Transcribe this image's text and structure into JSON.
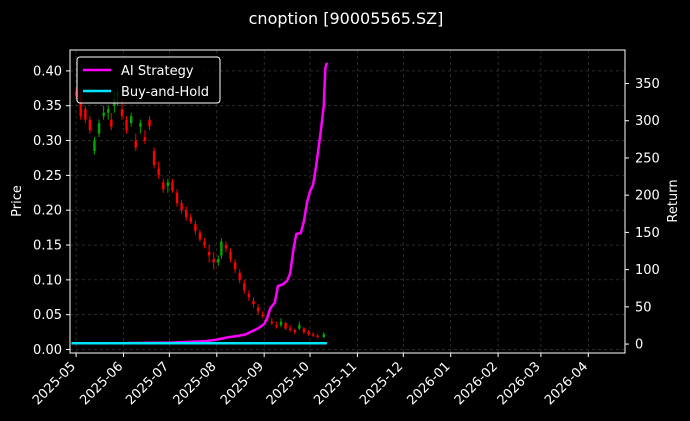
{
  "chart_data": {
    "type": "line",
    "title": "cnoption [90005565.SZ]",
    "ylabel_left": "Price",
    "ylabel_right": "Return",
    "xlabel": "",
    "grid": true,
    "legend_placement": "top-left",
    "background": "#000000",
    "colors": {
      "ai_strategy": "#ff00ff",
      "buy_and_hold": "#00e5ff",
      "candle_up": "#00aa00",
      "candle_down": "#ff0000",
      "grid": "#444444",
      "text": "#ffffff"
    },
    "x_range": [
      "2025-04-27",
      "2026-04-25"
    ],
    "x_ticks": [
      "2025-05",
      "2025-06",
      "2025-07",
      "2025-08",
      "2025-09",
      "2025-10",
      "2025-11",
      "2025-12",
      "2026-01",
      "2026-02",
      "2026-03",
      "2026-04"
    ],
    "left_axis": {
      "ylim": [
        -0.005,
        0.43
      ],
      "ticks": [
        "0.00",
        "0.05",
        "0.10",
        "0.15",
        "0.20",
        "0.25",
        "0.30",
        "0.35",
        "0.40"
      ]
    },
    "right_axis": {
      "ylim": [
        -12,
        395
      ],
      "ticks": [
        "0",
        "50",
        "100",
        "150",
        "200",
        "250",
        "300",
        "350"
      ]
    },
    "series": [
      {
        "name": "AI Strategy",
        "axis": "right",
        "points": [
          [
            "2025-04-28",
            1
          ],
          [
            "2025-05-15",
            1
          ],
          [
            "2025-06-01",
            1.2
          ],
          [
            "2025-06-15",
            1.5
          ],
          [
            "2025-07-01",
            2
          ],
          [
            "2025-07-15",
            3
          ],
          [
            "2025-07-25",
            4
          ],
          [
            "2025-08-01",
            6
          ],
          [
            "2025-08-08",
            9
          ],
          [
            "2025-08-15",
            11
          ],
          [
            "2025-08-20",
            13
          ],
          [
            "2025-08-24",
            17
          ],
          [
            "2025-08-28",
            21
          ],
          [
            "2025-09-01",
            27
          ],
          [
            "2025-09-03",
            35
          ],
          [
            "2025-09-05",
            48
          ],
          [
            "2025-09-08",
            56
          ],
          [
            "2025-09-10",
            78
          ],
          [
            "2025-09-13",
            80
          ],
          [
            "2025-09-16",
            85
          ],
          [
            "2025-09-18",
            95
          ],
          [
            "2025-09-20",
            125
          ],
          [
            "2025-09-22",
            148
          ],
          [
            "2025-09-25",
            149
          ],
          [
            "2025-09-27",
            165
          ],
          [
            "2025-09-29",
            190
          ],
          [
            "2025-10-01",
            205
          ],
          [
            "2025-10-03",
            214
          ],
          [
            "2025-10-05",
            240
          ],
          [
            "2025-10-08",
            285
          ],
          [
            "2025-10-10",
            320
          ],
          [
            "2025-10-11",
            370
          ],
          [
            "2025-10-12",
            378
          ]
        ]
      },
      {
        "name": "Buy-and-Hold",
        "axis": "right",
        "points": [
          [
            "2025-04-28",
            1
          ],
          [
            "2025-10-12",
            1
          ]
        ]
      }
    ],
    "candles_ohlc": [
      [
        "2025-05-01",
        0.37,
        0.375,
        0.36,
        0.365
      ],
      [
        "2025-05-04",
        0.365,
        0.37,
        0.33,
        0.335
      ],
      [
        "2025-05-07",
        0.345,
        0.35,
        0.325,
        0.33
      ],
      [
        "2025-05-10",
        0.33,
        0.335,
        0.31,
        0.315
      ],
      [
        "2025-05-13",
        0.285,
        0.305,
        0.28,
        0.3
      ],
      [
        "2025-05-16",
        0.31,
        0.33,
        0.305,
        0.325
      ],
      [
        "2025-05-19",
        0.335,
        0.35,
        0.33,
        0.34
      ],
      [
        "2025-05-22",
        0.34,
        0.35,
        0.33,
        0.345
      ],
      [
        "2025-05-24",
        0.33,
        0.34,
        0.315,
        0.32
      ],
      [
        "2025-05-26",
        0.35,
        0.37,
        0.34,
        0.36
      ],
      [
        "2025-05-28",
        0.365,
        0.375,
        0.35,
        0.37
      ],
      [
        "2025-05-31",
        0.345,
        0.36,
        0.33,
        0.335
      ],
      [
        "2025-06-03",
        0.33,
        0.335,
        0.31,
        0.315
      ],
      [
        "2025-06-06",
        0.325,
        0.34,
        0.32,
        0.335
      ],
      [
        "2025-06-09",
        0.3,
        0.31,
        0.285,
        0.29
      ],
      [
        "2025-06-12",
        0.32,
        0.33,
        0.31,
        0.325
      ],
      [
        "2025-06-15",
        0.305,
        0.315,
        0.295,
        0.3
      ],
      [
        "2025-06-18",
        0.33,
        0.335,
        0.315,
        0.32
      ],
      [
        "2025-06-21",
        0.285,
        0.29,
        0.26,
        0.265
      ],
      [
        "2025-06-24",
        0.26,
        0.27,
        0.245,
        0.25
      ],
      [
        "2025-06-27",
        0.24,
        0.245,
        0.225,
        0.23
      ],
      [
        "2025-06-30",
        0.235,
        0.245,
        0.225,
        0.24
      ],
      [
        "2025-07-03",
        0.24,
        0.245,
        0.225,
        0.228
      ],
      [
        "2025-07-06",
        0.225,
        0.23,
        0.205,
        0.21
      ],
      [
        "2025-07-09",
        0.21,
        0.215,
        0.195,
        0.2
      ],
      [
        "2025-07-12",
        0.2,
        0.205,
        0.185,
        0.19
      ],
      [
        "2025-07-15",
        0.19,
        0.195,
        0.18,
        0.183
      ],
      [
        "2025-07-18",
        0.18,
        0.185,
        0.165,
        0.17
      ],
      [
        "2025-07-21",
        0.168,
        0.172,
        0.155,
        0.158
      ],
      [
        "2025-07-24",
        0.155,
        0.16,
        0.145,
        0.15
      ],
      [
        "2025-07-27",
        0.14,
        0.15,
        0.125,
        0.135
      ],
      [
        "2025-07-30",
        0.13,
        0.14,
        0.115,
        0.125
      ],
      [
        "2025-08-02",
        0.125,
        0.135,
        0.12,
        0.13
      ],
      [
        "2025-08-04",
        0.135,
        0.16,
        0.13,
        0.155
      ],
      [
        "2025-08-07",
        0.15,
        0.155,
        0.14,
        0.145
      ],
      [
        "2025-08-10",
        0.14,
        0.145,
        0.125,
        0.13
      ],
      [
        "2025-08-13",
        0.125,
        0.13,
        0.11,
        0.115
      ],
      [
        "2025-08-16",
        0.11,
        0.115,
        0.095,
        0.1
      ],
      [
        "2025-08-19",
        0.095,
        0.1,
        0.08,
        0.085
      ],
      [
        "2025-08-22",
        0.08,
        0.085,
        0.07,
        0.075
      ],
      [
        "2025-08-25",
        0.07,
        0.075,
        0.06,
        0.065
      ],
      [
        "2025-08-28",
        0.06,
        0.065,
        0.05,
        0.055
      ],
      [
        "2025-08-31",
        0.05,
        0.055,
        0.045,
        0.048
      ],
      [
        "2025-09-03",
        0.045,
        0.05,
        0.04,
        0.042
      ],
      [
        "2025-09-06",
        0.04,
        0.045,
        0.035,
        0.038
      ],
      [
        "2025-09-09",
        0.035,
        0.04,
        0.03,
        0.033
      ],
      [
        "2025-09-12",
        0.035,
        0.045,
        0.032,
        0.04
      ],
      [
        "2025-09-15",
        0.038,
        0.04,
        0.028,
        0.03
      ],
      [
        "2025-09-18",
        0.03,
        0.035,
        0.025,
        0.028
      ],
      [
        "2025-09-21",
        0.028,
        0.03,
        0.022,
        0.025
      ],
      [
        "2025-09-24",
        0.03,
        0.04,
        0.028,
        0.035
      ],
      [
        "2025-09-27",
        0.03,
        0.032,
        0.022,
        0.025
      ],
      [
        "2025-09-30",
        0.025,
        0.028,
        0.02,
        0.022
      ],
      [
        "2025-10-03",
        0.022,
        0.025,
        0.018,
        0.02
      ],
      [
        "2025-10-06",
        0.02,
        0.022,
        0.016,
        0.018
      ],
      [
        "2025-10-10",
        0.018,
        0.025,
        0.016,
        0.022
      ]
    ]
  }
}
